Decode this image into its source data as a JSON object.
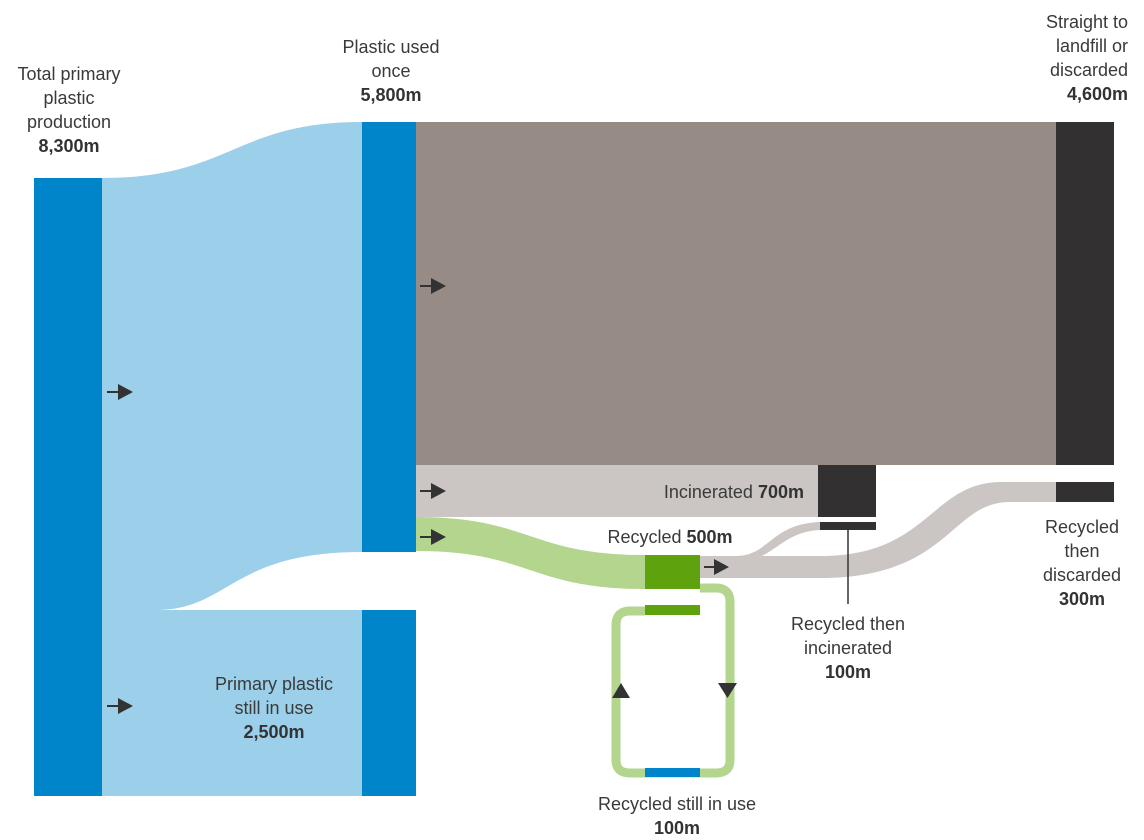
{
  "colors": {
    "primary_bar": "#0085ca",
    "primary_flow": "#9bcfea",
    "landfill_flow": "#968b85",
    "incinerated_flow": "#cbc6c3",
    "recycled_flow": "#b3d58d",
    "recycled_bar": "#5ea30e",
    "dark_bar": "#323031",
    "arrow": "#333333"
  },
  "nodes": {
    "total_primary": {
      "label": "Total primary plastic production",
      "value": "8,300m"
    },
    "used_once": {
      "label": "Plastic used once",
      "value": "5,800m"
    },
    "landfill": {
      "label": "Straight to landfill or discarded",
      "value": "4,600m"
    },
    "incinerated": {
      "label": "Incinerated",
      "value": "700m"
    },
    "recycled": {
      "label": "Recycled",
      "value": "500m"
    },
    "recycled_incinerated": {
      "label": "Recycled then incinerated",
      "value": "100m"
    },
    "recycled_discarded": {
      "label": "Recycled then discarded",
      "value": "300m"
    },
    "recycled_in_use": {
      "label": "Recycled still in use",
      "value": "100m"
    },
    "primary_in_use": {
      "label": "Primary plastic still in use",
      "value": "2,500m"
    }
  }
}
